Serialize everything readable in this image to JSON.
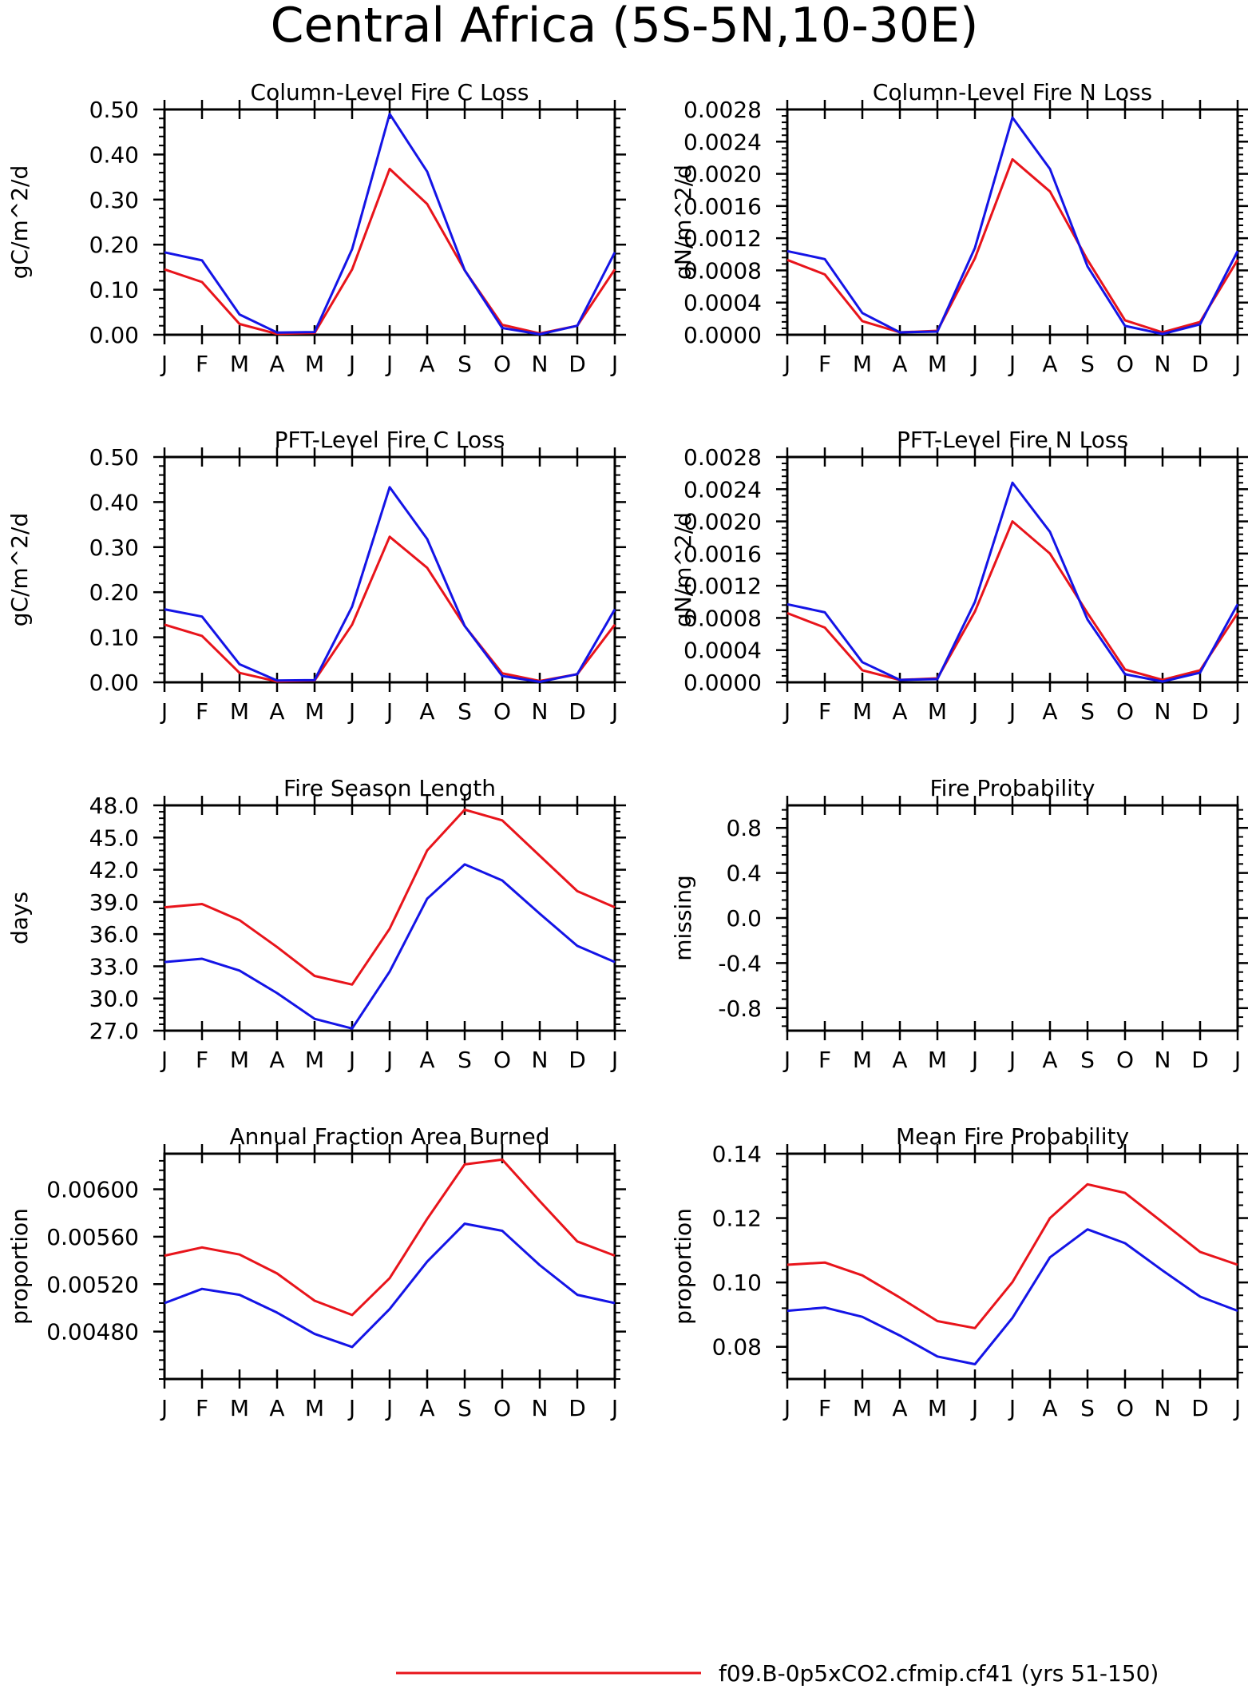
{
  "figure": {
    "title": "Central Africa (5S-5N,10-30E)",
    "legend": {
      "entries": [
        {
          "label": "f09.B-0p5xCO2.cfmip.cf41 (yrs 51-150)",
          "color": "#e8141b"
        }
      ]
    }
  },
  "chart_data": [
    {
      "type": "line",
      "title": "Column-Level Fire C Loss",
      "ylabel": "gC/m^2/d",
      "categories": [
        "J",
        "F",
        "M",
        "A",
        "M",
        "J",
        "J",
        "A",
        "S",
        "O",
        "N",
        "D",
        "J"
      ],
      "ylim": [
        0,
        0.5
      ],
      "yticks": [
        0,
        0.1,
        0.2,
        0.3,
        0.4,
        0.5
      ],
      "ytick_labels": [
        "0.00",
        "0.10",
        "0.20",
        "0.30",
        "0.40",
        "0.50"
      ],
      "series": [
        {
          "color": "#e8141b",
          "values": [
            0.145,
            0.117,
            0.024,
            0.002,
            0.004,
            0.145,
            0.368,
            0.29,
            0.143,
            0.022,
            0.003,
            0.02,
            0.145
          ]
        },
        {
          "color": "#1414e6",
          "values": [
            0.183,
            0.165,
            0.045,
            0.005,
            0.006,
            0.19,
            0.49,
            0.362,
            0.143,
            0.015,
            0.001,
            0.02,
            0.183
          ]
        }
      ]
    },
    {
      "type": "line",
      "title": "Column-Level Fire N Loss",
      "ylabel": "gN/m^2/d",
      "categories": [
        "J",
        "F",
        "M",
        "A",
        "M",
        "J",
        "J",
        "A",
        "S",
        "O",
        "N",
        "D",
        "J"
      ],
      "ylim": [
        0,
        0.0028
      ],
      "yticks": [
        0,
        0.0004,
        0.0008,
        0.0012,
        0.0016,
        0.002,
        0.0024,
        0.0028
      ],
      "ytick_labels": [
        "0.0000",
        "0.0004",
        "0.0008",
        "0.0012",
        "0.0016",
        "0.0020",
        "0.0024",
        "0.0028"
      ],
      "series": [
        {
          "color": "#e8141b",
          "values": [
            0.00093,
            0.00075,
            0.00017,
            3e-05,
            5e-05,
            0.00095,
            0.00218,
            0.00178,
            0.00093,
            0.00018,
            3e-05,
            0.00016,
            0.00093
          ]
        },
        {
          "color": "#1414e6",
          "values": [
            0.00104,
            0.00094,
            0.00027,
            3e-05,
            4e-05,
            0.00108,
            0.0027,
            0.00206,
            0.00085,
            0.00011,
            1e-05,
            0.00013,
            0.00104
          ]
        }
      ]
    },
    {
      "type": "line",
      "title": "PFT-Level Fire C Loss",
      "ylabel": "gC/m^2/d",
      "categories": [
        "J",
        "F",
        "M",
        "A",
        "M",
        "J",
        "J",
        "A",
        "S",
        "O",
        "N",
        "D",
        "J"
      ],
      "ylim": [
        0,
        0.5
      ],
      "yticks": [
        0,
        0.1,
        0.2,
        0.3,
        0.4,
        0.5
      ],
      "ytick_labels": [
        "0.00",
        "0.10",
        "0.20",
        "0.30",
        "0.40",
        "0.50"
      ],
      "series": [
        {
          "color": "#e8141b",
          "values": [
            0.128,
            0.103,
            0.021,
            0.002,
            0.004,
            0.128,
            0.323,
            0.254,
            0.125,
            0.02,
            0.003,
            0.018,
            0.128
          ]
        },
        {
          "color": "#1414e6",
          "values": [
            0.162,
            0.146,
            0.04,
            0.004,
            0.005,
            0.168,
            0.433,
            0.318,
            0.125,
            0.014,
            0.001,
            0.018,
            0.162
          ]
        }
      ]
    },
    {
      "type": "line",
      "title": "PFT-Level Fire N Loss",
      "ylabel": "gN/m^2/d",
      "categories": [
        "J",
        "F",
        "M",
        "A",
        "M",
        "J",
        "J",
        "A",
        "S",
        "O",
        "N",
        "D",
        "J"
      ],
      "ylim": [
        0,
        0.0028
      ],
      "yticks": [
        0,
        0.0004,
        0.0008,
        0.0012,
        0.0016,
        0.002,
        0.0024,
        0.0028
      ],
      "ytick_labels": [
        "0.0000",
        "0.0004",
        "0.0008",
        "0.0012",
        "0.0016",
        "0.0020",
        "0.0024",
        "0.0028"
      ],
      "series": [
        {
          "color": "#e8141b",
          "values": [
            0.00086,
            0.00068,
            0.00015,
            3e-05,
            5e-05,
            0.00088,
            0.002,
            0.0016,
            0.00086,
            0.00016,
            3e-05,
            0.00015,
            0.00086
          ]
        },
        {
          "color": "#1414e6",
          "values": [
            0.00097,
            0.00087,
            0.00025,
            3e-05,
            4e-05,
            0.001,
            0.00248,
            0.00187,
            0.00078,
            0.0001,
            1e-05,
            0.00012,
            0.00097
          ]
        }
      ]
    },
    {
      "type": "line",
      "title": "Fire Season Length",
      "ylabel": "days",
      "categories": [
        "J",
        "F",
        "M",
        "A",
        "M",
        "J",
        "J",
        "A",
        "S",
        "O",
        "N",
        "D",
        "J"
      ],
      "ylim": [
        27,
        48
      ],
      "yticks": [
        27,
        30,
        33,
        36,
        39,
        42,
        45,
        48
      ],
      "ytick_labels": [
        "27.0",
        "30.0",
        "33.0",
        "36.0",
        "39.0",
        "42.0",
        "45.0",
        "48.0"
      ],
      "series": [
        {
          "color": "#e8141b",
          "values": [
            38.5,
            38.8,
            37.3,
            34.8,
            32.1,
            31.3,
            36.5,
            43.8,
            47.6,
            46.6,
            43.3,
            40.0,
            38.5
          ]
        },
        {
          "color": "#1414e6",
          "values": [
            33.4,
            33.7,
            32.6,
            30.5,
            28.1,
            27.2,
            32.5,
            39.3,
            42.5,
            41.0,
            37.9,
            34.9,
            33.4
          ]
        }
      ]
    },
    {
      "type": "line",
      "title": "Fire Probability",
      "ylabel": "missing",
      "categories": [
        "J",
        "F",
        "M",
        "A",
        "M",
        "J",
        "J",
        "A",
        "S",
        "O",
        "N",
        "D",
        "J"
      ],
      "ylim": [
        -1.0,
        1.0
      ],
      "yticks": [
        -0.8,
        -0.4,
        0.0,
        0.4,
        0.8
      ],
      "ytick_labels": [
        "-0.8",
        "-0.4",
        "0.0",
        "0.4",
        "0.8"
      ],
      "series": []
    },
    {
      "type": "line",
      "title": "Annual Fraction Area Burned",
      "ylabel": "proportion",
      "categories": [
        "J",
        "F",
        "M",
        "A",
        "M",
        "J",
        "J",
        "A",
        "S",
        "O",
        "N",
        "D",
        "J"
      ],
      "ylim": [
        0.0044,
        0.0063
      ],
      "yticks": [
        0.0048,
        0.0052,
        0.0056,
        0.006
      ],
      "ytick_labels": [
        "0.00480",
        "0.00520",
        "0.00560",
        "0.00600"
      ],
      "series": [
        {
          "color": "#e8141b",
          "values": [
            0.00544,
            0.00551,
            0.00545,
            0.00529,
            0.00506,
            0.00494,
            0.00525,
            0.00575,
            0.00621,
            0.00625,
            0.0059,
            0.00556,
            0.00544
          ]
        },
        {
          "color": "#1414e6",
          "values": [
            0.00504,
            0.00516,
            0.00511,
            0.00496,
            0.00478,
            0.00467,
            0.00499,
            0.00539,
            0.00571,
            0.00565,
            0.00536,
            0.00511,
            0.00504
          ]
        }
      ]
    },
    {
      "type": "line",
      "title": "Mean Fire Probability",
      "ylabel": "proportion",
      "categories": [
        "J",
        "F",
        "M",
        "A",
        "M",
        "J",
        "J",
        "A",
        "S",
        "O",
        "N",
        "D",
        "J"
      ],
      "ylim": [
        0.07,
        0.14
      ],
      "yticks": [
        0.08,
        0.1,
        0.12,
        0.14
      ],
      "ytick_labels": [
        "0.08",
        "0.10",
        "0.12",
        "0.14"
      ],
      "series": [
        {
          "color": "#e8141b",
          "values": [
            0.1055,
            0.1062,
            0.1022,
            0.0953,
            0.088,
            0.0858,
            0.1001,
            0.12,
            0.1305,
            0.1278,
            0.1187,
            0.1095,
            0.1055
          ]
        },
        {
          "color": "#1414e6",
          "values": [
            0.0912,
            0.0922,
            0.0893,
            0.0835,
            0.077,
            0.0746,
            0.089,
            0.1078,
            0.1165,
            0.1122,
            0.1037,
            0.0956,
            0.0912
          ]
        }
      ]
    }
  ]
}
